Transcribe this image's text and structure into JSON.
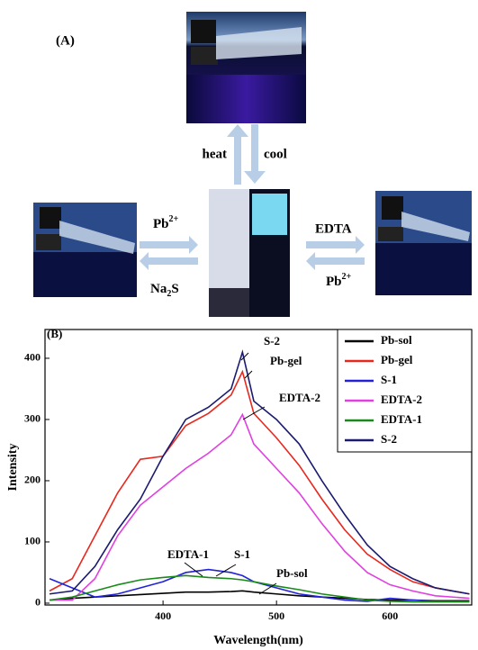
{
  "panel_a": {
    "label": "(A)",
    "heat": "heat",
    "cool": "cool",
    "left_top": {
      "base": "Pb",
      "sup": "2+"
    },
    "left_bottom": {
      "base": "Na",
      "sub": "2",
      "rest": "S"
    },
    "right_top": "EDTA",
    "right_bottom": {
      "base": "Pb",
      "sup": "2+"
    }
  },
  "chart_data": {
    "type": "line",
    "panel_label": "(B)",
    "xlabel": "Wavelength(nm)",
    "ylabel": "Intensity",
    "x": [
      300,
      320,
      340,
      360,
      380,
      400,
      420,
      440,
      460,
      470,
      480,
      500,
      520,
      540,
      560,
      580,
      600,
      620,
      640,
      670
    ],
    "series": [
      {
        "name": "Pb-sol",
        "color": "#000000",
        "values": [
          5,
          8,
          10,
          12,
          14,
          16,
          18,
          18,
          19,
          20,
          18,
          15,
          12,
          10,
          8,
          6,
          5,
          5,
          4,
          4
        ]
      },
      {
        "name": "Pb-gel",
        "color": "#e8281e",
        "values": [
          20,
          40,
          110,
          180,
          235,
          240,
          290,
          310,
          340,
          378,
          310,
          270,
          225,
          170,
          120,
          80,
          55,
          35,
          25,
          15
        ]
      },
      {
        "name": "S-1",
        "color": "#2222d8",
        "values": [
          40,
          25,
          10,
          15,
          25,
          35,
          50,
          55,
          50,
          45,
          35,
          25,
          15,
          10,
          5,
          3,
          8,
          5,
          3,
          3
        ]
      },
      {
        "name": "EDTA-2",
        "color": "#e040e0",
        "values": [
          5,
          5,
          40,
          110,
          160,
          190,
          220,
          245,
          275,
          308,
          260,
          220,
          180,
          130,
          85,
          50,
          30,
          20,
          12,
          8
        ]
      },
      {
        "name": "EDTA-1",
        "color": "#1a8a1a",
        "values": [
          5,
          10,
          20,
          30,
          38,
          42,
          45,
          42,
          40,
          38,
          35,
          28,
          22,
          15,
          10,
          5,
          3,
          2,
          2,
          2
        ]
      },
      {
        "name": "S-2",
        "color": "#1a1a70",
        "values": [
          15,
          20,
          60,
          120,
          170,
          240,
          300,
          320,
          350,
          410,
          330,
          300,
          260,
          200,
          145,
          95,
          60,
          40,
          25,
          15
        ]
      }
    ],
    "xlim": [
      296,
      672
    ],
    "ylim": [
      -3,
      447
    ],
    "xticks": [
      400,
      500,
      600
    ],
    "yticks": [
      0,
      100,
      200,
      300,
      400
    ],
    "legend": "upper right",
    "annotations": [
      {
        "text": "S-2"
      },
      {
        "text": "Pb-gel"
      },
      {
        "text": "EDTA-2"
      },
      {
        "text": "EDTA-1"
      },
      {
        "text": "S-1"
      },
      {
        "text": "Pb-sol"
      }
    ]
  }
}
